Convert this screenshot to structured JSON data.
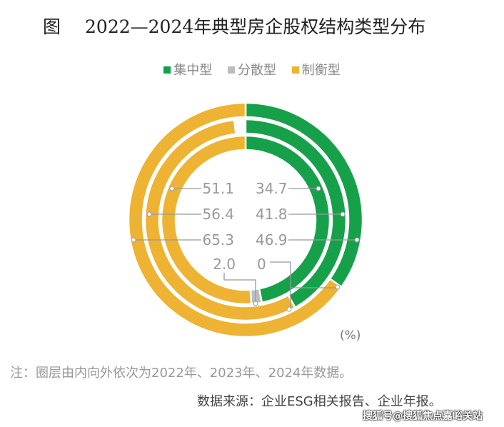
{
  "title": {
    "prefix": "图",
    "text": "2022—2024年典型房企股权结构类型分布"
  },
  "legend": [
    {
      "label": "集中型",
      "color": "#16a04a"
    },
    {
      "label": "分散型",
      "color": "#bdbdbd"
    },
    {
      "label": "制衡型",
      "color": "#eeb332"
    }
  ],
  "chart_data": {
    "type": "donut",
    "title": "2022—2024年典型房企股权结构类型分布",
    "unit": "(%)",
    "categories": [
      "集中型",
      "分散型",
      "制衡型"
    ],
    "rings": [
      {
        "year": "2022",
        "values": [
          46.9,
          2.0,
          51.1
        ]
      },
      {
        "year": "2023",
        "values": [
          41.8,
          0,
          56.4
        ]
      },
      {
        "year": "2024",
        "values": [
          34.7,
          0,
          65.3
        ]
      }
    ],
    "labels": {
      "left": [
        "51.1",
        "56.4",
        "65.3"
      ],
      "right": [
        "34.7",
        "41.8",
        "46.9"
      ],
      "bottom_left": "2.0",
      "bottom_right": "0"
    }
  },
  "note": "注：圈层由内向外依次为2022年、2023年、2024年数据。",
  "source": "数据来源：企业ESG相关报告、企业年报。",
  "watermark": "搜狐号@搜狐焦点嘉峪关站"
}
